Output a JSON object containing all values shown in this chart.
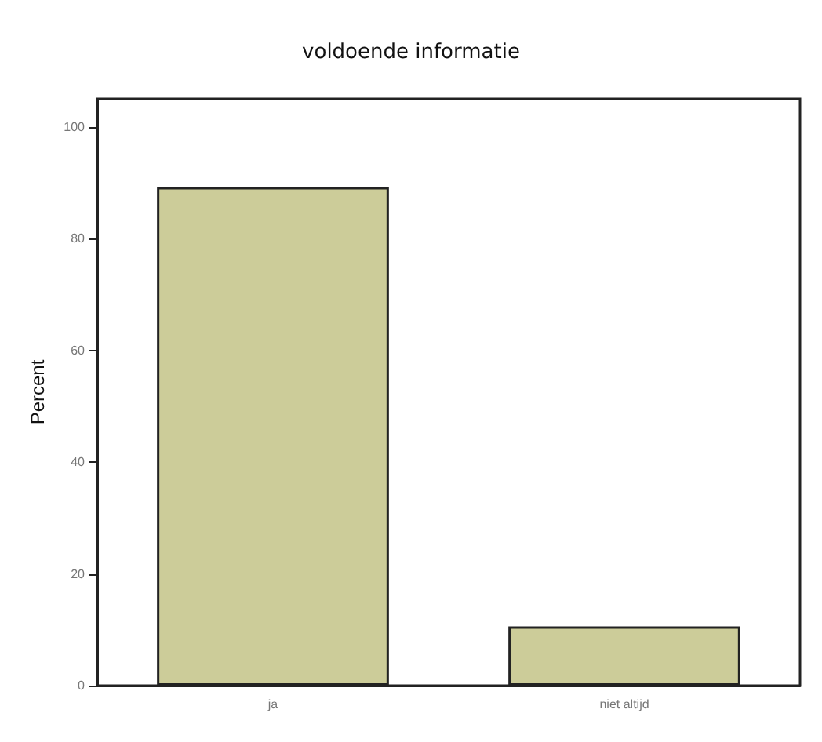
{
  "chart_data": {
    "type": "bar",
    "title": "voldoende informatie",
    "ylabel": "Percent",
    "categories": [
      "ja",
      "niet altijd"
    ],
    "values": [
      89.2,
      10.6
    ],
    "color": "#cccc99",
    "ylim": [
      0,
      105
    ],
    "yticks": [
      0,
      20,
      40,
      60,
      80,
      100
    ],
    "grid": false
  }
}
